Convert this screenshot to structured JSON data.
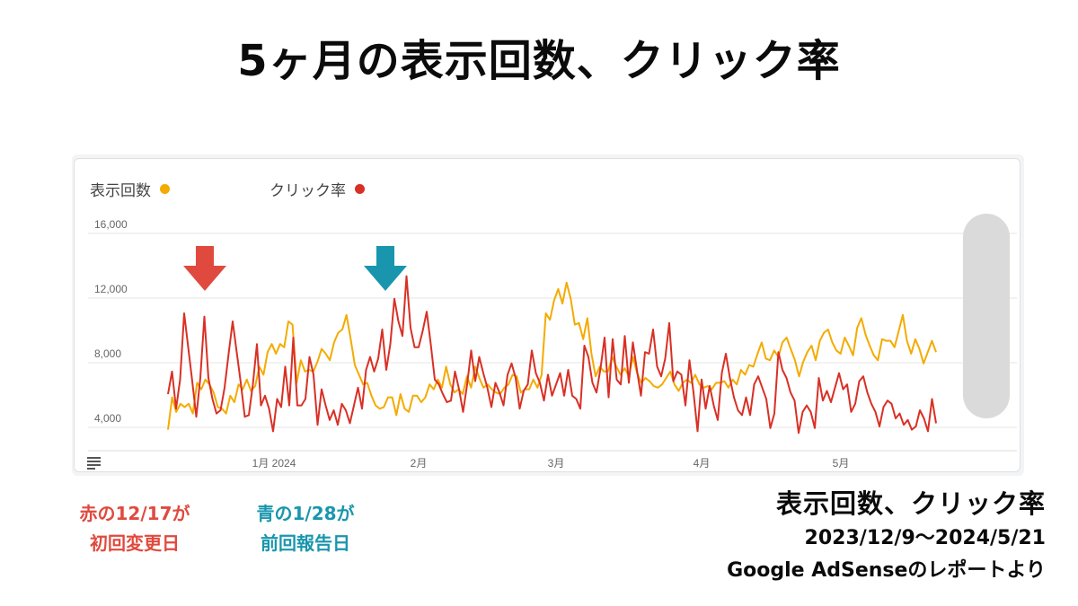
{
  "title": "5ヶ月の表示回数、クリック率",
  "chart_data": {
    "type": "line",
    "legend": [
      {
        "label": "表示回数",
        "color": "#f4ab00"
      },
      {
        "label": "クリック率",
        "color": "#d93025"
      }
    ],
    "x_tick_labels": [
      "1月 2024",
      "2月",
      "3月",
      "4月",
      "5月"
    ],
    "y_tick_labels": [
      "16,000",
      "12,000",
      "8,000",
      "4,000"
    ],
    "ylim": [
      2000,
      17000
    ],
    "grid": true,
    "series": [
      {
        "name": "表示回数",
        "color": "#f4ab00",
        "values": [
          3300,
          5300,
          4400,
          4900,
          4700,
          4900,
          4300,
          6200,
          5800,
          6400,
          6100,
          5600,
          4700,
          4600,
          4300,
          5400,
          5000,
          6100,
          5800,
          6400,
          5700,
          6000,
          7200,
          6700,
          8100,
          8600,
          8000,
          8600,
          8400,
          10000,
          9800,
          6200,
          7600,
          6900,
          7000,
          6900,
          7500,
          8300,
          8000,
          7600,
          8700,
          9300,
          9500,
          10400,
          8900,
          7300,
          6700,
          6100,
          6200,
          5400,
          4800,
          4600,
          4700,
          5300,
          5300,
          4200,
          5500,
          4600,
          4400,
          5400,
          5400,
          5000,
          5300,
          6100,
          5800,
          6400,
          5900,
          7200,
          6100,
          5600,
          5800,
          5500,
          6600,
          5900,
          7200,
          6500,
          5900,
          6100,
          5800,
          5600,
          5500,
          5900,
          6100,
          6700,
          6600,
          5600,
          5800,
          5800,
          6400,
          5900,
          6700,
          10500,
          10100,
          11300,
          12000,
          11100,
          12400,
          11400,
          9800,
          9900,
          8900,
          10200,
          8000,
          6600,
          7200,
          6900,
          6900,
          7800,
          7200,
          6700,
          7100,
          6600,
          7800,
          6800,
          6200,
          6500,
          6300,
          6000,
          5900,
          6100,
          6500,
          6900,
          6100,
          5700,
          6200,
          6400,
          6200,
          6700,
          6100,
          5900,
          6000,
          5800,
          6200,
          6200,
          6300,
          5900,
          6400,
          6100,
          7000,
          6700,
          7300,
          7200,
          8000,
          8700,
          7700,
          7600,
          8200,
          7800,
          8700,
          9000,
          8300,
          7600,
          6600,
          7500,
          8100,
          8500,
          7600,
          8800,
          9300,
          9500,
          8700,
          8200,
          8000,
          9000,
          8500,
          7900,
          9600,
          10200,
          9200,
          8500,
          7900,
          7600,
          8900,
          8800,
          8800,
          8400,
          9400,
          10400,
          8800,
          8000,
          8900,
          8300,
          7400,
          8100,
          8800,
          8100
        ]
      },
      {
        "name": "クリック率",
        "color": "#d93025",
        "values": [
          5500,
          6900,
          4600,
          6400,
          10500,
          8400,
          6300,
          4100,
          6500,
          10300,
          6500,
          5200,
          4300,
          4500,
          5900,
          8000,
          10000,
          8100,
          6200,
          4100,
          4200,
          6100,
          8600,
          4800,
          5400,
          4600,
          3200,
          5200,
          4700,
          7200,
          4800,
          9000,
          4800,
          4800,
          5200,
          7800,
          6700,
          3600,
          5800,
          4800,
          3900,
          4500,
          3600,
          4900,
          4500,
          3700,
          4800,
          5900,
          4600,
          7000,
          7800,
          6900,
          7700,
          9500,
          7000,
          8600,
          11400,
          10000,
          9100,
          12800,
          9600,
          8400,
          8400,
          9400,
          10600,
          8600,
          6400,
          6100,
          5500,
          5000,
          5100,
          6900,
          5800,
          4400,
          6100,
          8200,
          6300,
          7800,
          6800,
          5900,
          4700,
          6200,
          5600,
          4800,
          6700,
          7400,
          6500,
          4600,
          5700,
          6100,
          8200,
          6800,
          6200,
          5100,
          6700,
          5400,
          6100,
          6800,
          5400,
          7000,
          5400,
          5200,
          4600,
          8500,
          7800,
          6200,
          5600,
          7100,
          9000,
          5300,
          8900,
          6400,
          6100,
          9100,
          6200,
          8700,
          7000,
          5400,
          8100,
          8000,
          9500,
          7200,
          6600,
          7700,
          9900,
          6300,
          6900,
          6700,
          4800,
          7600,
          5600,
          3200,
          6400,
          4600,
          6000,
          4800,
          3900,
          6800,
          8000,
          6500,
          5300,
          4500,
          4200,
          5300,
          4200,
          6100,
          6600,
          5900,
          5200,
          3400,
          4300,
          8100,
          7000,
          6500,
          5600,
          5100,
          3100,
          4400,
          4800,
          4400,
          3400,
          6500,
          5100,
          5700,
          5000,
          5900,
          6800,
          5800,
          6100,
          4400,
          4900,
          6300,
          6600,
          5600,
          4900,
          4400,
          3500,
          4700,
          5100,
          4900,
          4000,
          4300,
          3600,
          3900,
          3300,
          3500,
          4500,
          4000,
          3200,
          5200,
          3700
        ]
      }
    ]
  },
  "notes": {
    "red_line1": "赤の12/17が",
    "red_line2": "初回変更日",
    "blue_line1": "青の1/28が",
    "blue_line2": "前回報告日"
  },
  "info": {
    "line1": "表示回数、クリック率",
    "line2": "2023/12/9～2024/5/21",
    "line3": "Google AdSenseのレポートより"
  },
  "arrows": [
    {
      "marker": "12/17",
      "color": "#e04a3e"
    },
    {
      "marker": "1/28",
      "color": "#1996ad"
    }
  ]
}
